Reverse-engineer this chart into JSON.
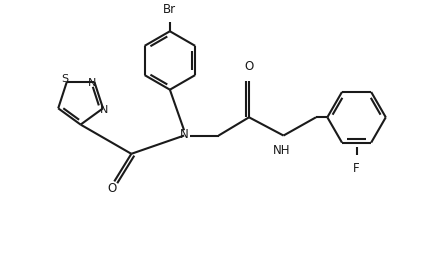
{
  "bg_color": "#ffffff",
  "line_color": "#1a1a1a",
  "line_width": 1.5,
  "figsize": [
    4.25,
    2.58
  ],
  "dpi": 100,
  "xlim": [
    0,
    10.2
  ],
  "ylim": [
    0,
    6.2
  ]
}
